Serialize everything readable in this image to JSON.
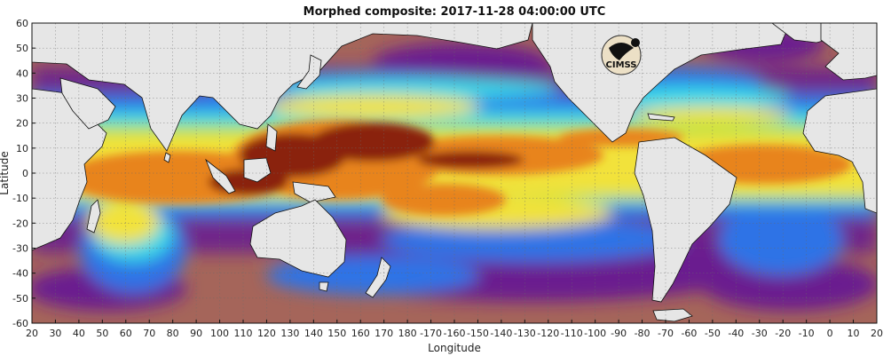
{
  "title": "Morphed composite: 2017-11-28 04:00:00 UTC",
  "xlabel": "Longitude",
  "ylabel": "Latitude",
  "logo_text": "CIMSS",
  "x_ticks": [
    "20",
    "30",
    "40",
    "50",
    "60",
    "70",
    "80",
    "90",
    "100",
    "110",
    "120",
    "130",
    "140",
    "150",
    "160",
    "170",
    "180",
    "-170",
    "-160",
    "-150",
    "-140",
    "-130",
    "-120",
    "-110",
    "-100",
    "-90",
    "-80",
    "-70",
    "-60",
    "-50",
    "-40",
    "-30",
    "-20",
    "-10",
    "0",
    "10",
    "20"
  ],
  "y_ticks": [
    "60",
    "50",
    "40",
    "30",
    "20",
    "10",
    "0",
    "-10",
    "-20",
    "-30",
    "-40",
    "-50",
    "-60"
  ],
  "colors": {
    "dry_brown": "#a5655a",
    "purple": "#6a1f8f",
    "blue": "#2f73e6",
    "cyan": "#38d8e8",
    "green": "#9be14a",
    "yellow": "#f2e23a",
    "orange": "#e8841a",
    "dark_red": "#8a2408",
    "land": "#e6e6e6"
  }
}
